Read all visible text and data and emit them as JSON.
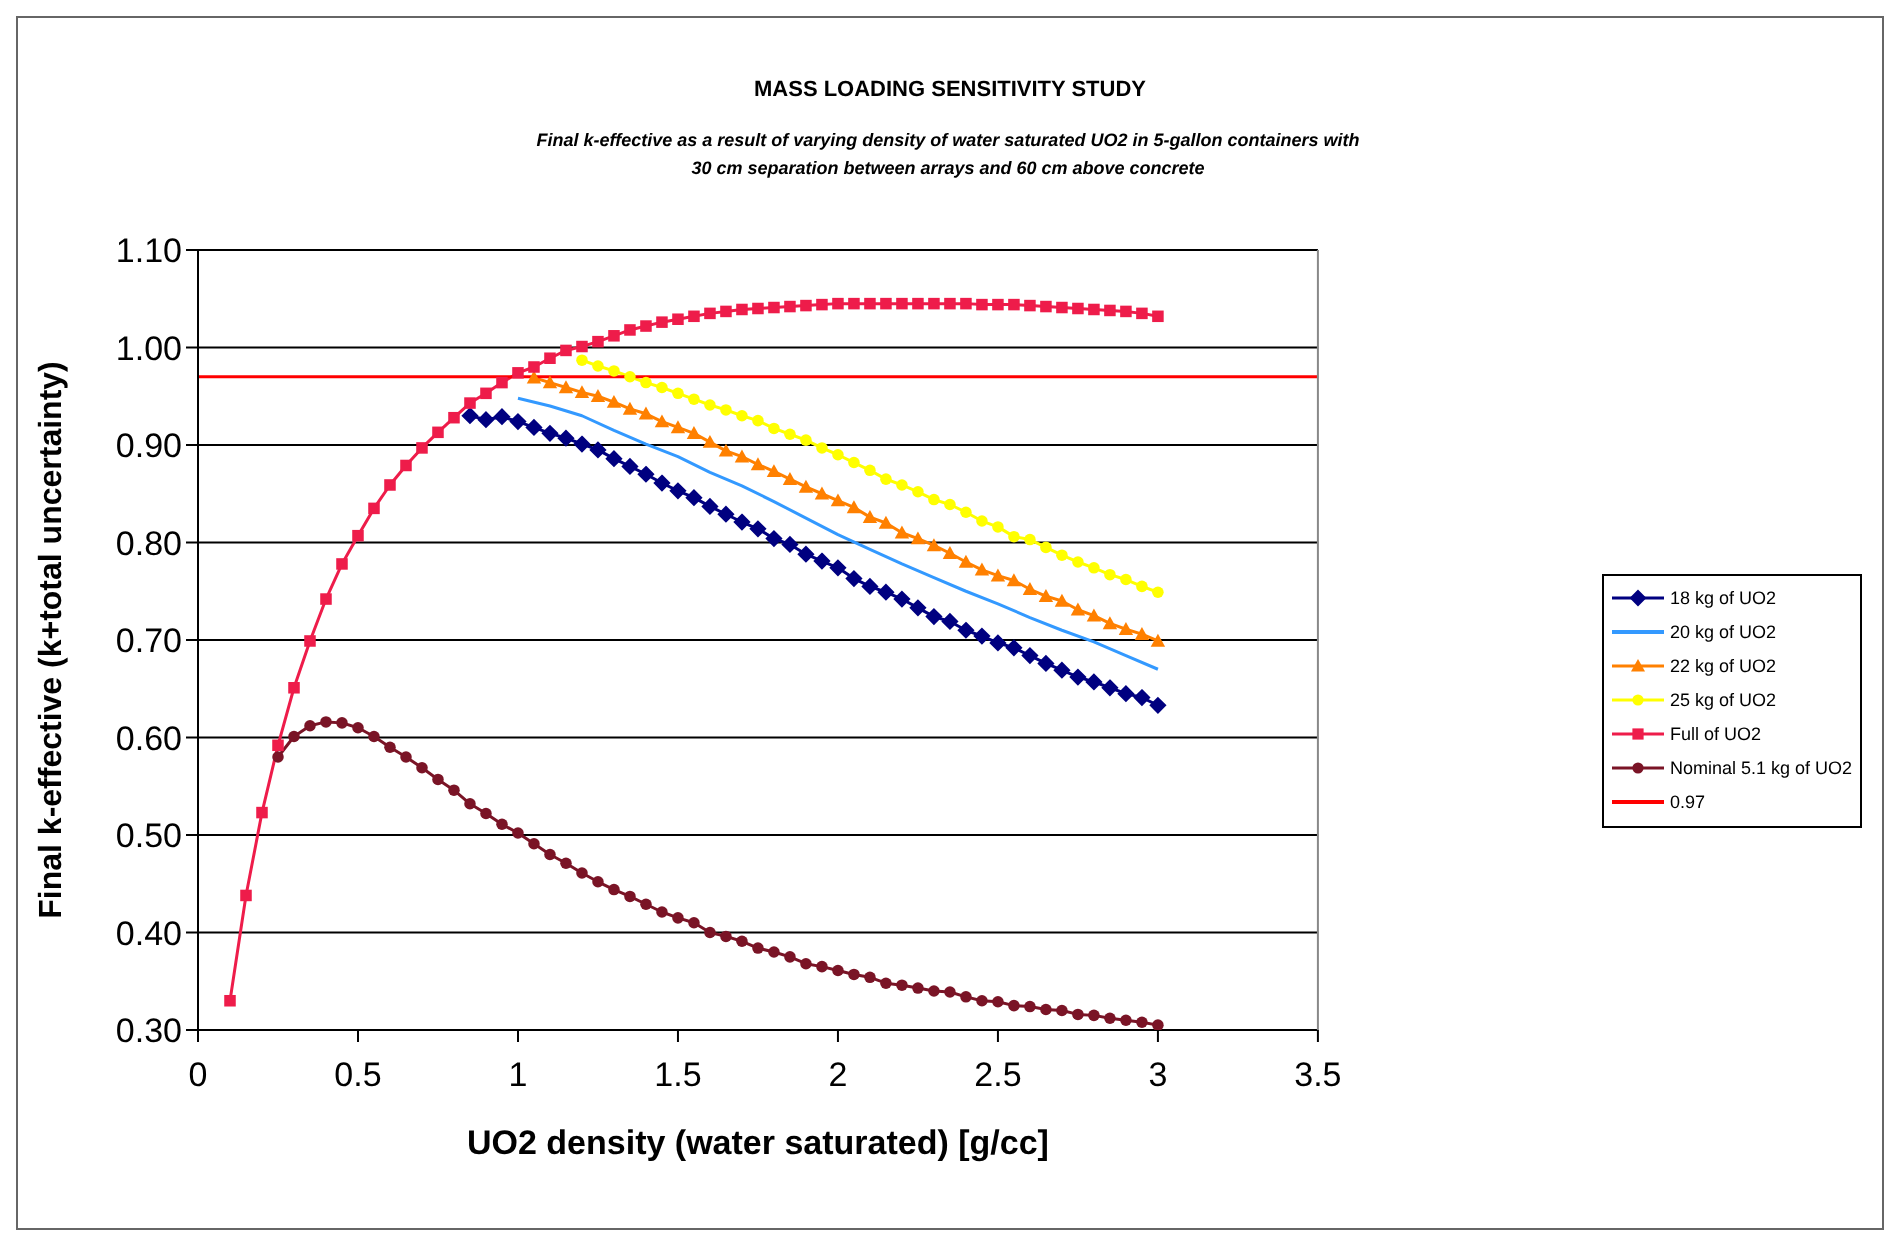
{
  "chart_data": {
    "type": "line",
    "title": "MASS LOADING SENSITIVITY STUDY",
    "subtitle": "Final k-effective as a result of varying density of water saturated UO2 in 5-gallon containers with 30 cm separation between arrays and 60 cm above concrete",
    "xlabel": "UO2 density (water saturated) [g/cc]",
    "ylabel": "Final k-effective (k+total uncertainty)",
    "xlim": [
      0,
      3.5
    ],
    "xticks": [
      0,
      0.5,
      1,
      1.5,
      2,
      2.5,
      3,
      3.5
    ],
    "ylim": [
      0.3,
      1.1
    ],
    "yticks": [
      {
        "value": 0.3,
        "label": "0.30"
      },
      {
        "value": 0.4,
        "label": "0.40"
      },
      {
        "value": 0.5,
        "label": "0.50"
      },
      {
        "value": 0.6,
        "label": "0.60"
      },
      {
        "value": 0.7,
        "label": "0.70"
      },
      {
        "value": 0.8,
        "label": "0.80"
      },
      {
        "value": 0.9,
        "label": "0.90"
      },
      {
        "value": 1.0,
        "label": "1.00"
      },
      {
        "value": 1.1,
        "label": "1.10"
      }
    ],
    "grid": "y",
    "legend": "right",
    "series": [
      {
        "name": "18 kg of UO2",
        "color": "#000080",
        "marker": "diamond",
        "x": [
          0.85,
          0.9,
          0.95,
          1.0,
          1.05,
          1.1,
          1.15,
          1.2,
          1.25,
          1.3,
          1.35,
          1.4,
          1.45,
          1.5,
          1.55,
          1.6,
          1.65,
          1.7,
          1.75,
          1.8,
          1.85,
          1.9,
          1.95,
          2.0,
          2.05,
          2.1,
          2.15,
          2.2,
          2.25,
          2.3,
          2.35,
          2.4,
          2.45,
          2.5,
          2.55,
          2.6,
          2.65,
          2.7,
          2.75,
          2.8,
          2.85,
          2.9,
          2.95,
          3.0
        ],
        "values": [
          0.93,
          0.926,
          0.929,
          0.924,
          0.918,
          0.912,
          0.907,
          0.901,
          0.895,
          0.886,
          0.878,
          0.87,
          0.861,
          0.853,
          0.846,
          0.837,
          0.829,
          0.821,
          0.814,
          0.804,
          0.798,
          0.788,
          0.781,
          0.774,
          0.763,
          0.755,
          0.749,
          0.742,
          0.733,
          0.724,
          0.719,
          0.71,
          0.704,
          0.697,
          0.692,
          0.684,
          0.676,
          0.669,
          0.662,
          0.657,
          0.651,
          0.645,
          0.641,
          0.633
        ]
      },
      {
        "name": "20 kg of UO2",
        "color": "#3399ff",
        "marker": "none",
        "x": [
          1.0,
          1.1,
          1.2,
          1.3,
          1.4,
          1.5,
          1.6,
          1.7,
          1.8,
          1.9,
          2.0,
          2.1,
          2.2,
          2.3,
          2.4,
          2.5,
          2.6,
          2.7,
          2.8,
          2.9,
          3.0
        ],
        "values": [
          0.948,
          0.94,
          0.93,
          0.915,
          0.901,
          0.888,
          0.872,
          0.858,
          0.842,
          0.825,
          0.808,
          0.793,
          0.778,
          0.764,
          0.75,
          0.737,
          0.723,
          0.71,
          0.698,
          0.684,
          0.67
        ]
      },
      {
        "name": "22 kg of UO2",
        "color": "#ff8000",
        "marker": "triangle",
        "x": [
          1.05,
          1.1,
          1.15,
          1.2,
          1.25,
          1.3,
          1.35,
          1.4,
          1.45,
          1.5,
          1.55,
          1.6,
          1.65,
          1.7,
          1.75,
          1.8,
          1.85,
          1.9,
          1.95,
          2.0,
          2.05,
          2.1,
          2.15,
          2.2,
          2.25,
          2.3,
          2.35,
          2.4,
          2.45,
          2.5,
          2.55,
          2.6,
          2.65,
          2.7,
          2.75,
          2.8,
          2.85,
          2.9,
          2.95,
          3.0
        ],
        "values": [
          0.969,
          0.964,
          0.959,
          0.954,
          0.95,
          0.944,
          0.937,
          0.932,
          0.924,
          0.918,
          0.912,
          0.903,
          0.894,
          0.888,
          0.88,
          0.873,
          0.865,
          0.857,
          0.85,
          0.843,
          0.836,
          0.826,
          0.82,
          0.81,
          0.804,
          0.797,
          0.789,
          0.78,
          0.772,
          0.766,
          0.761,
          0.752,
          0.745,
          0.74,
          0.731,
          0.725,
          0.717,
          0.711,
          0.706,
          0.699
        ]
      },
      {
        "name": "25 kg of UO2",
        "color": "#ffff00",
        "marker": "circle",
        "x": [
          1.2,
          1.25,
          1.3,
          1.35,
          1.4,
          1.45,
          1.5,
          1.55,
          1.6,
          1.65,
          1.7,
          1.75,
          1.8,
          1.85,
          1.9,
          1.95,
          2.0,
          2.05,
          2.1,
          2.15,
          2.2,
          2.25,
          2.3,
          2.35,
          2.4,
          2.45,
          2.5,
          2.55,
          2.6,
          2.65,
          2.7,
          2.75,
          2.8,
          2.85,
          2.9,
          2.95,
          3.0
        ],
        "values": [
          0.987,
          0.981,
          0.976,
          0.97,
          0.964,
          0.959,
          0.953,
          0.947,
          0.941,
          0.936,
          0.93,
          0.925,
          0.917,
          0.911,
          0.905,
          0.897,
          0.89,
          0.882,
          0.874,
          0.865,
          0.859,
          0.852,
          0.844,
          0.839,
          0.831,
          0.822,
          0.816,
          0.806,
          0.803,
          0.795,
          0.787,
          0.78,
          0.774,
          0.767,
          0.762,
          0.755,
          0.749
        ]
      },
      {
        "name": "Full of UO2",
        "color": "#ee1c4a",
        "marker": "square",
        "x": [
          0.1,
          0.15,
          0.2,
          0.25,
          0.3,
          0.35,
          0.4,
          0.45,
          0.5,
          0.55,
          0.6,
          0.65,
          0.7,
          0.75,
          0.8,
          0.85,
          0.9,
          0.95,
          1.0,
          1.05,
          1.1,
          1.15,
          1.2,
          1.25,
          1.3,
          1.35,
          1.4,
          1.45,
          1.5,
          1.55,
          1.6,
          1.65,
          1.7,
          1.75,
          1.8,
          1.85,
          1.9,
          1.95,
          2.0,
          2.05,
          2.1,
          2.15,
          2.2,
          2.25,
          2.3,
          2.35,
          2.4,
          2.45,
          2.5,
          2.55,
          2.6,
          2.65,
          2.7,
          2.75,
          2.8,
          2.85,
          2.9,
          2.95,
          3.0
        ],
        "values": [
          0.33,
          0.438,
          0.523,
          0.592,
          0.651,
          0.699,
          0.742,
          0.778,
          0.807,
          0.835,
          0.859,
          0.879,
          0.897,
          0.913,
          0.928,
          0.943,
          0.953,
          0.964,
          0.974,
          0.98,
          0.989,
          0.997,
          1.001,
          1.006,
          1.012,
          1.018,
          1.022,
          1.026,
          1.029,
          1.032,
          1.035,
          1.037,
          1.039,
          1.04,
          1.041,
          1.042,
          1.043,
          1.044,
          1.045,
          1.045,
          1.045,
          1.045,
          1.045,
          1.045,
          1.045,
          1.045,
          1.045,
          1.044,
          1.044,
          1.044,
          1.043,
          1.042,
          1.041,
          1.04,
          1.039,
          1.038,
          1.037,
          1.035,
          1.032
        ]
      },
      {
        "name": "Nominal 5.1 kg of UO2",
        "color": "#7a1426",
        "marker": "circle",
        "x": [
          0.25,
          0.3,
          0.35,
          0.4,
          0.45,
          0.5,
          0.55,
          0.6,
          0.65,
          0.7,
          0.75,
          0.8,
          0.85,
          0.9,
          0.95,
          1.0,
          1.05,
          1.1,
          1.15,
          1.2,
          1.25,
          1.3,
          1.35,
          1.4,
          1.45,
          1.5,
          1.55,
          1.6,
          1.65,
          1.7,
          1.75,
          1.8,
          1.85,
          1.9,
          1.95,
          2.0,
          2.05,
          2.1,
          2.15,
          2.2,
          2.25,
          2.3,
          2.35,
          2.4,
          2.45,
          2.5,
          2.55,
          2.6,
          2.65,
          2.7,
          2.75,
          2.8,
          2.85,
          2.9,
          2.95,
          3.0
        ],
        "values": [
          0.58,
          0.601,
          0.612,
          0.616,
          0.615,
          0.61,
          0.601,
          0.59,
          0.58,
          0.569,
          0.557,
          0.546,
          0.532,
          0.522,
          0.511,
          0.502,
          0.491,
          0.48,
          0.471,
          0.461,
          0.452,
          0.444,
          0.437,
          0.429,
          0.421,
          0.415,
          0.41,
          0.4,
          0.396,
          0.391,
          0.384,
          0.38,
          0.375,
          0.368,
          0.365,
          0.361,
          0.357,
          0.354,
          0.348,
          0.346,
          0.343,
          0.34,
          0.339,
          0.334,
          0.33,
          0.329,
          0.325,
          0.324,
          0.321,
          0.32,
          0.316,
          0.315,
          0.312,
          0.31,
          0.308,
          0.305
        ]
      },
      {
        "name": "0.97",
        "color": "#ff0000",
        "marker": "none",
        "x": [
          0,
          3.5
        ],
        "values": [
          0.97,
          0.97
        ]
      }
    ]
  }
}
